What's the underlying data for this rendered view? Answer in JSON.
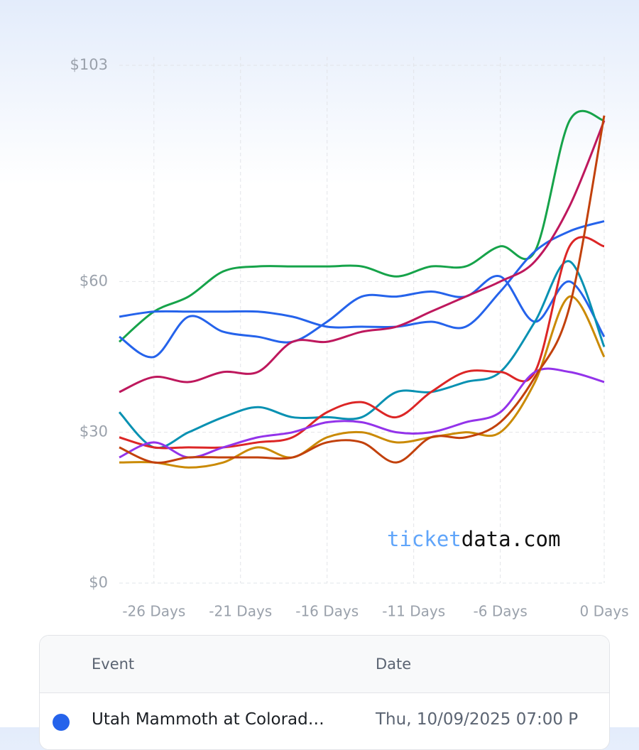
{
  "chart_data": {
    "type": "line",
    "x": [
      -28,
      -26,
      -24,
      -22,
      -20,
      -18,
      -16,
      -14,
      -12,
      -10,
      -8,
      -6,
      -4,
      -2,
      0
    ],
    "xlim": [
      -28,
      0
    ],
    "xticks": [
      {
        "value": -26,
        "label": "-26 Days"
      },
      {
        "value": -21,
        "label": "-21 Days"
      },
      {
        "value": -16,
        "label": "-16 Days"
      },
      {
        "value": -11,
        "label": "-11 Days"
      },
      {
        "value": -6,
        "label": "-6 Days"
      },
      {
        "value": 0,
        "label": "0 Days"
      }
    ],
    "ylim": [
      0,
      103
    ],
    "yticks": [
      {
        "value": 0,
        "label": "$0"
      },
      {
        "value": 30,
        "label": "$30"
      },
      {
        "value": 60,
        "label": "$60"
      },
      {
        "value": 103,
        "label": "$103"
      }
    ],
    "grid": true,
    "series": [
      {
        "color": "#16a34a",
        "values": [
          48,
          54,
          57,
          62,
          63,
          63,
          63,
          63,
          61,
          63,
          63,
          67,
          66,
          92,
          92
        ]
      },
      {
        "color": "#2563eb",
        "values": [
          53,
          54,
          54,
          54,
          54,
          53,
          51,
          51,
          51,
          52,
          51,
          58,
          66,
          70,
          72
        ]
      },
      {
        "color": "#2563eb",
        "values": [
          49,
          45,
          53,
          50,
          49,
          48,
          52,
          57,
          57,
          58,
          57,
          61,
          52,
          60,
          49
        ]
      },
      {
        "color": "#be185d",
        "values": [
          38,
          41,
          40,
          42,
          42,
          48,
          48,
          50,
          51,
          54,
          57,
          60,
          64,
          75,
          92
        ]
      },
      {
        "color": "#0891b2",
        "values": [
          34,
          27,
          30,
          33,
          35,
          33,
          33,
          33,
          38,
          38,
          40,
          42,
          52,
          64,
          47
        ]
      },
      {
        "color": "#dc2626",
        "values": [
          29,
          27,
          27,
          27,
          28,
          29,
          34,
          36,
          33,
          38,
          42,
          42,
          42,
          67,
          67
        ]
      },
      {
        "color": "#9333ea",
        "values": [
          25,
          28,
          25,
          27,
          29,
          30,
          32,
          32,
          30,
          30,
          32,
          34,
          42,
          42,
          40
        ]
      },
      {
        "color": "#ca8a04",
        "values": [
          24,
          24,
          23,
          24,
          27,
          25,
          29,
          30,
          28,
          29,
          30,
          30,
          40,
          57,
          45
        ]
      },
      {
        "color": "#c2410c",
        "values": [
          27,
          24,
          25,
          25,
          25,
          25,
          28,
          28,
          24,
          29,
          29,
          32,
          41,
          55,
          93
        ]
      }
    ],
    "watermark": {
      "part1": "ticket",
      "part2": "data.com"
    }
  },
  "table": {
    "headers": [
      "Event",
      "Date"
    ],
    "rows": [
      [
        "Utah Mammoth at Colorad…",
        "Thu, 10/09/2025 07:00 P"
      ]
    ]
  }
}
